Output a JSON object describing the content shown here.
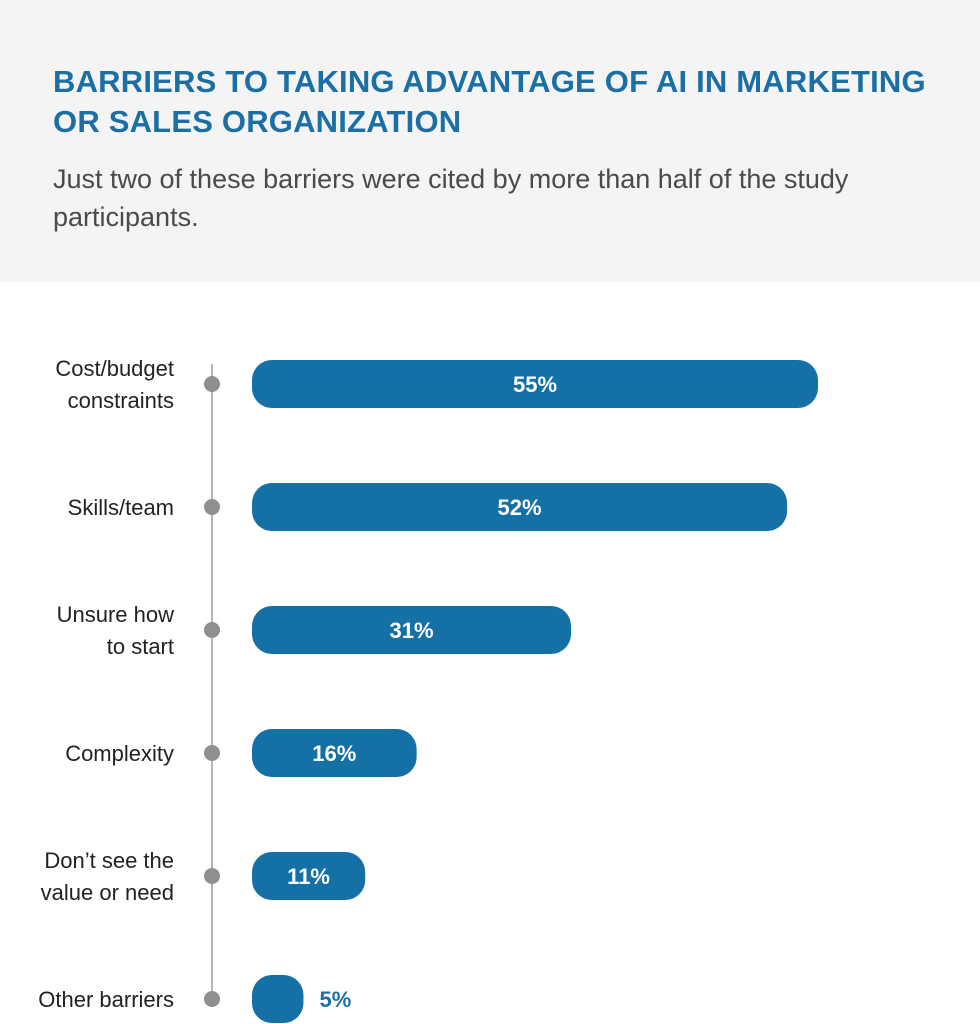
{
  "header": {
    "title": "BARRIERS TO TAKING ADVANTAGE OF AI IN MARKETING OR SALES ORGANIZATION",
    "subtitle": "Just two of these barriers were cited by more than half of the study participants."
  },
  "colors": {
    "bar": "#1570a6",
    "axis_line": "#b5b5b5",
    "axis_dot": "#8f8f8f",
    "header_bg": "#f3f4f3",
    "title": "#1b6fa5"
  },
  "chart_data": {
    "type": "bar",
    "orientation": "horizontal",
    "categories": [
      [
        "Cost/budget",
        "constraints"
      ],
      [
        "Skills/team"
      ],
      [
        "Unsure how",
        "to start"
      ],
      [
        "Complexity"
      ],
      [
        "Don’t see the",
        "value or need"
      ],
      [
        "Other barriers"
      ]
    ],
    "values": [
      55,
      52,
      31,
      16,
      11,
      5
    ],
    "value_labels": [
      "55%",
      "52%",
      "31%",
      "16%",
      "11%",
      "5%"
    ],
    "unit": "%",
    "xlim": [
      0,
      55
    ],
    "grid": false,
    "legend": "none"
  }
}
